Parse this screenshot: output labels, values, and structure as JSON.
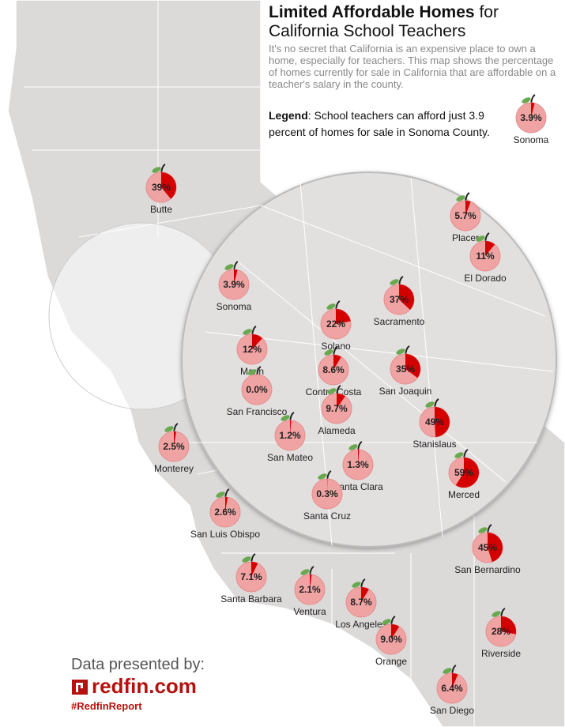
{
  "header": {
    "title": [
      "Limited Affordable Homes",
      "for",
      "California School Teachers"
    ],
    "description": "It's no secret that California is an expensive place to own a home, especially for teachers. This map shows the percentage of homes currently for sale in California that are affordable on a teacher's salary in the county."
  },
  "legend": {
    "label": "Legend",
    "text": ": School teachers can afford just 3.9 percent of homes for sale in Sonoma County.",
    "county": "Sonoma",
    "value": 3.9,
    "value_label": "3.9%"
  },
  "counties": [
    {
      "name": "Butte",
      "value": 39,
      "value_label": "39%"
    },
    {
      "name": "Sonoma",
      "value": 3.9,
      "value_label": "3.9%"
    },
    {
      "name": "Placer",
      "value": 5.7,
      "value_label": "5.7%"
    },
    {
      "name": "El Dorado",
      "value": 11,
      "value_label": "11%"
    },
    {
      "name": "Sacramento",
      "value": 37,
      "value_label": "37%"
    },
    {
      "name": "Solano",
      "value": 22,
      "value_label": "22%"
    },
    {
      "name": "Marin",
      "value": 12,
      "value_label": "12%"
    },
    {
      "name": "Contra Costa",
      "value": 8.6,
      "value_label": "8.6%"
    },
    {
      "name": "San Joaquin",
      "value": 35,
      "value_label": "35%"
    },
    {
      "name": "San Francisco",
      "value": 0,
      "value_label": "0.0%"
    },
    {
      "name": "Alameda",
      "value": 9.7,
      "value_label": "9.7%"
    },
    {
      "name": "Stanislaus",
      "value": 49,
      "value_label": "49%"
    },
    {
      "name": "San Mateo",
      "value": 1.2,
      "value_label": "1.2%"
    },
    {
      "name": "Santa Clara",
      "value": 1.3,
      "value_label": "1.3%"
    },
    {
      "name": "Merced",
      "value": 59,
      "value_label": "59%"
    },
    {
      "name": "Santa Cruz",
      "value": 0.3,
      "value_label": "0.3%"
    },
    {
      "name": "Monterey",
      "value": 2.5,
      "value_label": "2.5%"
    },
    {
      "name": "San Luis Obispo",
      "value": 2.6,
      "value_label": "2.6%"
    },
    {
      "name": "San Bernardino",
      "value": 45,
      "value_label": "45%"
    },
    {
      "name": "Santa Barbara",
      "value": 7.1,
      "value_label": "7.1%"
    },
    {
      "name": "Ventura",
      "value": 2.1,
      "value_label": "2.1%"
    },
    {
      "name": "Los Angeles",
      "value": 8.7,
      "value_label": "8.7%"
    },
    {
      "name": "Orange",
      "value": 9.0,
      "value_label": "9.0%"
    },
    {
      "name": "Riverside",
      "value": 28,
      "value_label": "28%"
    },
    {
      "name": "San Diego",
      "value": 6.4,
      "value_label": "6.4%"
    }
  ],
  "footer": {
    "presented_by": "Data presented by:",
    "brand": "redfin.com",
    "hashtag": "#RedfinReport"
  }
}
